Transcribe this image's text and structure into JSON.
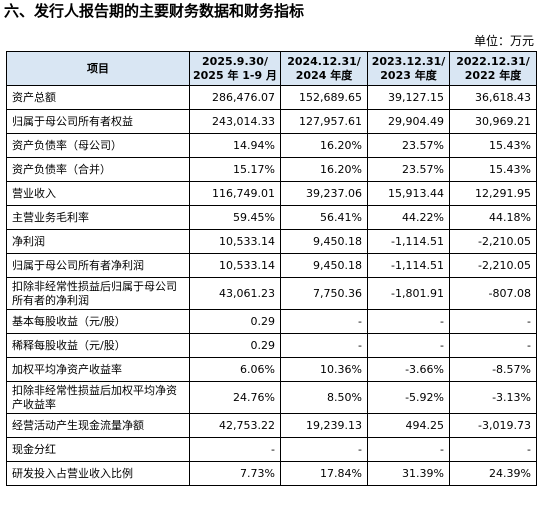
{
  "title": "六、发行人报告期的主要财务数据和财务指标",
  "unit": "单位：万元",
  "table": {
    "headers": [
      "项目",
      "2025.9.30/\n2025 年 1-9 月",
      "2024.12.31/\n2024 年度",
      "2023.12.31/\n2023 年度",
      "2022.12.31/\n2022 年度"
    ],
    "rows": [
      {
        "label": "资产总额",
        "values": [
          "286,476.07",
          "152,689.65",
          "39,127.15",
          "36,618.43"
        ]
      },
      {
        "label": "归属于母公司所有者权益",
        "values": [
          "243,014.33",
          "127,957.61",
          "29,904.49",
          "30,969.21"
        ]
      },
      {
        "label": "资产负债率（母公司）",
        "values": [
          "14.94%",
          "16.20%",
          "23.57%",
          "15.43%"
        ]
      },
      {
        "label": "资产负债率（合并）",
        "values": [
          "15.17%",
          "16.20%",
          "23.57%",
          "15.43%"
        ]
      },
      {
        "label": "营业收入",
        "values": [
          "116,749.01",
          "39,237.06",
          "15,913.44",
          "12,291.95"
        ]
      },
      {
        "label": "主营业务毛利率",
        "values": [
          "59.45%",
          "56.41%",
          "44.22%",
          "44.18%"
        ]
      },
      {
        "label": "净利润",
        "values": [
          "10,533.14",
          "9,450.18",
          "-1,114.51",
          "-2,210.05"
        ]
      },
      {
        "label": "归属于母公司所有者净利润",
        "values": [
          "10,533.14",
          "9,450.18",
          "-1,114.51",
          "-2,210.05"
        ]
      },
      {
        "label": "扣除非经常性损益后归属于母公司所有者的净利润",
        "values": [
          "43,061.23",
          "7,750.36",
          "-1,801.91",
          "-807.08"
        ]
      },
      {
        "label": "基本每股收益（元/股）",
        "values": [
          "0.29",
          "-",
          "-",
          "-"
        ]
      },
      {
        "label": "稀释每股收益（元/股）",
        "values": [
          "0.29",
          "-",
          "-",
          "-"
        ]
      },
      {
        "label": "加权平均净资产收益率",
        "values": [
          "6.06%",
          "10.36%",
          "-3.66%",
          "-8.57%"
        ]
      },
      {
        "label": "扣除非经常性损益后加权平均净资产收益率",
        "values": [
          "24.76%",
          "8.50%",
          "-5.92%",
          "-3.13%"
        ]
      },
      {
        "label": "经营活动产生现金流量净额",
        "values": [
          "42,753.22",
          "19,239.13",
          "494.25",
          "-3,019.73"
        ]
      },
      {
        "label": "现金分红",
        "values": [
          "-",
          "-",
          "-",
          "-"
        ]
      },
      {
        "label": "研发投入占营业收入比例",
        "values": [
          "7.73%",
          "17.84%",
          "31.39%",
          "24.39%"
        ]
      }
    ]
  }
}
